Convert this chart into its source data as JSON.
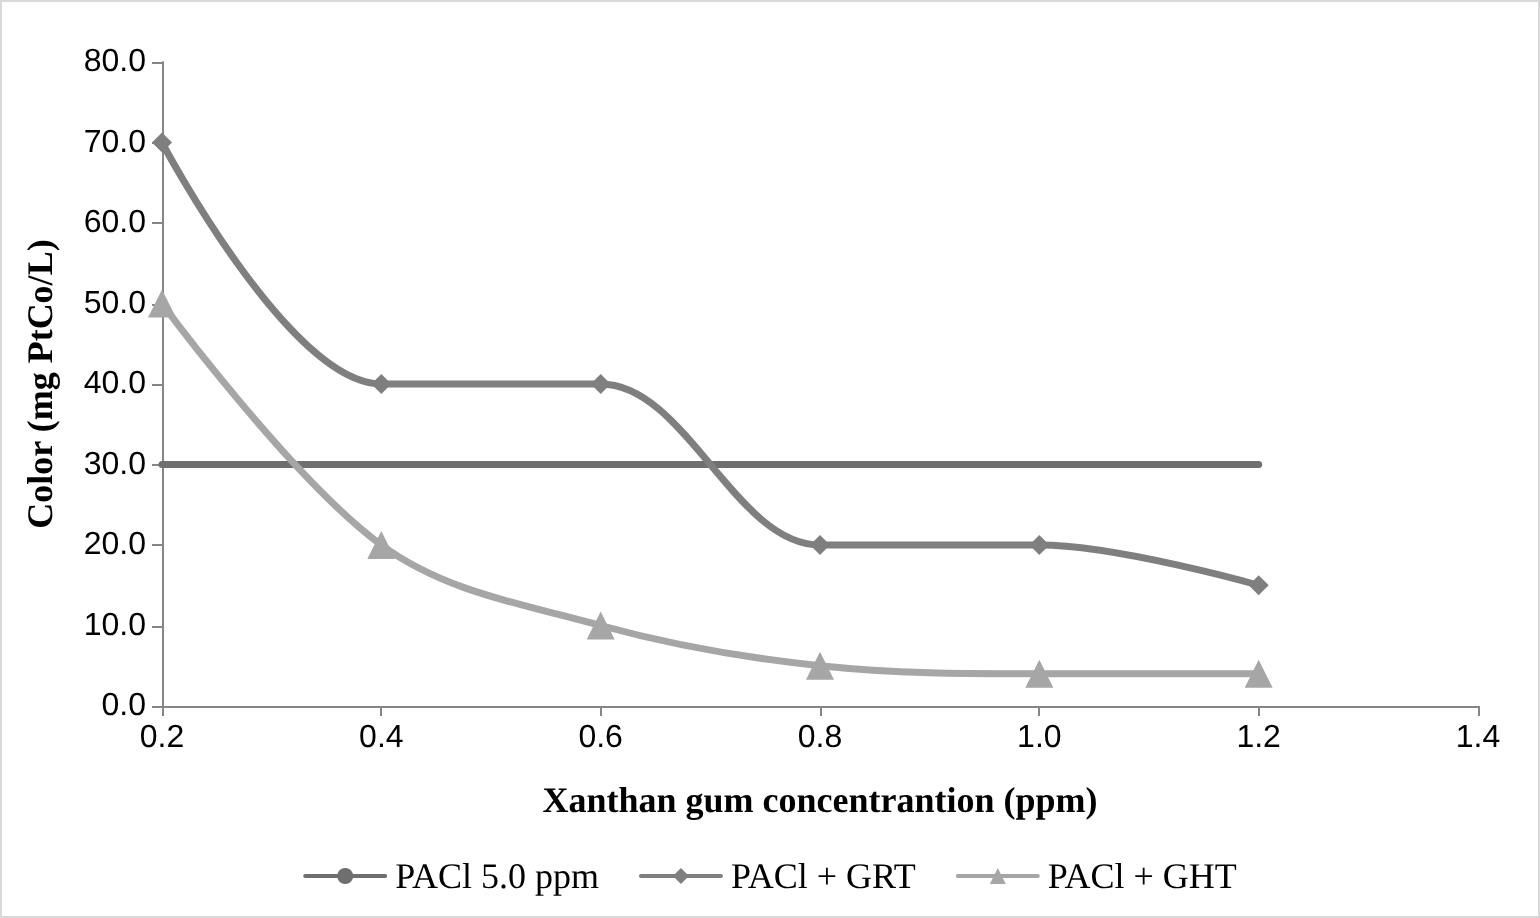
{
  "chart_data": {
    "type": "line",
    "xlabel": "Xanthan gum concentrantion (ppm)",
    "ylabel": "Color (mg PtCo/L)",
    "x": [
      0.2,
      0.4,
      0.6,
      0.8,
      1.0,
      1.2
    ],
    "series": [
      {
        "name": "PACl 5.0 ppm",
        "color": "#6f6f6f",
        "values": [
          30,
          30,
          30,
          30,
          30,
          30
        ],
        "marker": "none"
      },
      {
        "name": "PACl + GRT",
        "color": "#7f7f7f",
        "values": [
          70,
          40,
          40,
          20,
          20,
          15
        ],
        "marker": "diamond"
      },
      {
        "name": "PACl + GHT",
        "color": "#a6a6a6",
        "values": [
          50,
          20,
          10,
          5,
          4,
          4
        ],
        "marker": "triangle"
      }
    ],
    "xlim": [
      0.2,
      1.4
    ],
    "xticks": [
      0.2,
      0.4,
      0.6,
      0.8,
      {
        "value": 1,
        "label": "1.0"
      },
      1.2,
      1.4
    ],
    "ylim": [
      0,
      80
    ],
    "yticks": [
      {
        "value": 0,
        "label": "0.0"
      },
      {
        "value": 10,
        "label": "10.0"
      },
      {
        "value": 20,
        "label": "20.0"
      },
      {
        "value": 30,
        "label": "30.0"
      },
      {
        "value": 40,
        "label": "40.0"
      },
      {
        "value": 50,
        "label": "50.0"
      },
      {
        "value": 60,
        "label": "60.0"
      },
      {
        "value": 70,
        "label": "70.0"
      },
      {
        "value": 80,
        "label": "80.0"
      }
    ],
    "grid": false,
    "legend": "bottom",
    "line_style": "solid"
  }
}
